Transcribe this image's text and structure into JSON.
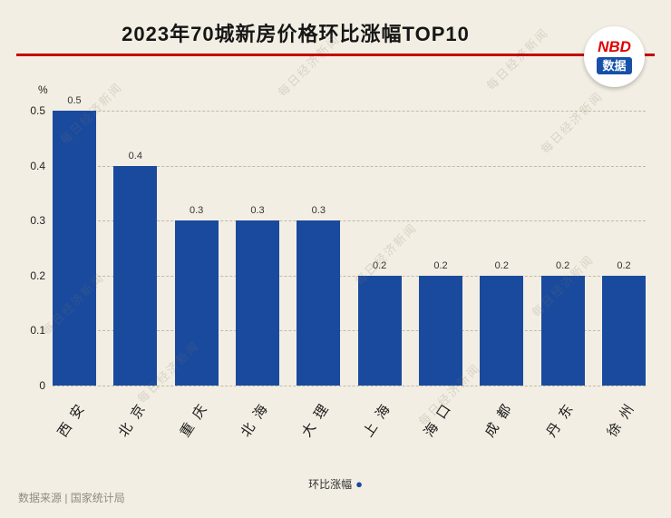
{
  "meta": {
    "bg_color": "#f3eee3",
    "bar_color": "#1a4a9e",
    "divider_color": "#c30000",
    "logo_red": "#e00000",
    "logo_blue": "#1650a8"
  },
  "header": {
    "title": "2023年70城新房价格环比涨幅TOP10",
    "logo": {
      "line1": "NBD",
      "line2": "数据"
    }
  },
  "chart_data": {
    "type": "bar",
    "title": "2023年70城新房价格环比涨幅TOP10",
    "categories": [
      "西安",
      "北京",
      "重庆",
      "北海",
      "大理",
      "上海",
      "海口",
      "成都",
      "丹东",
      "徐州"
    ],
    "values": [
      0.5,
      0.4,
      0.3,
      0.3,
      0.3,
      0.2,
      0.2,
      0.2,
      0.2,
      0.2
    ],
    "value_labels": [
      "0.5",
      "0.4",
      "0.3",
      "0.3",
      "0.3",
      "0.2",
      "0.2",
      "0.2",
      "0.2",
      "0.2"
    ],
    "ylabel": "%",
    "yticks": [
      0,
      0.1,
      0.2,
      0.3,
      0.4,
      0.5
    ],
    "ytick_labels": [
      "0",
      "0.1",
      "0.2",
      "0.3",
      "0.4",
      "0.5"
    ],
    "ylim": [
      0,
      0.5
    ],
    "grid": true,
    "legend": {
      "label": "环比涨幅",
      "marker": "●",
      "position": "bottom-center"
    }
  },
  "footer": {
    "source": "数据来源 | 国家统计局"
  },
  "watermark": {
    "text": "每日经济新闻"
  }
}
